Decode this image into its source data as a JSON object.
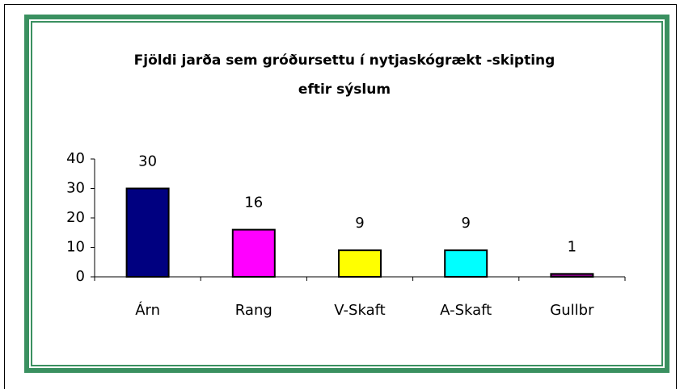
{
  "chart_data": {
    "type": "bar",
    "title": [
      "Fjöldi jarða sem gróðursettu í nytjaskógrækt -skipting",
      "eftir sýslum"
    ],
    "categories": [
      "Árn",
      "Rang",
      "V-Skaft",
      "A-Skaft",
      "Gullbr"
    ],
    "values": [
      30,
      16,
      9,
      9,
      1
    ],
    "colors": [
      "#000080",
      "#ff00ff",
      "#ffff00",
      "#00ffff",
      "#800080"
    ],
    "ylim": [
      0,
      40
    ],
    "yticks": [
      0,
      10,
      20,
      30,
      40
    ],
    "grid": false
  }
}
